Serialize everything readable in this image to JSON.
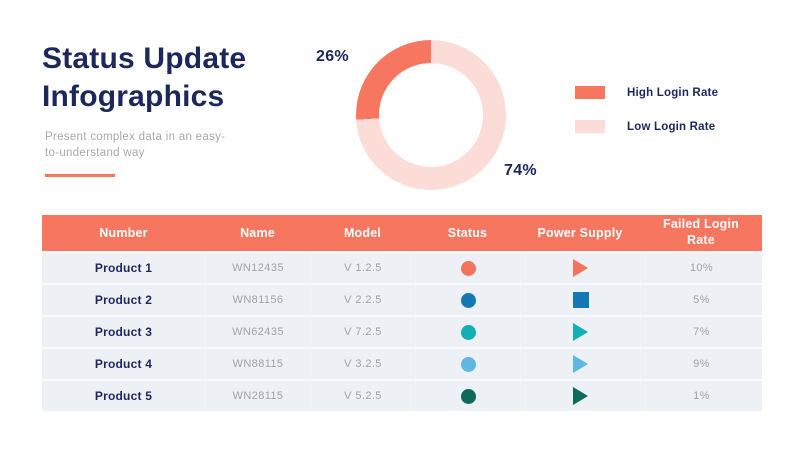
{
  "header": {
    "title_line1": "Status Update",
    "title_line2": "Infographics",
    "subtitle_line1": "Present complex data in an easy-",
    "subtitle_line2": "to-understand way"
  },
  "colors": {
    "coral": "#F7765F",
    "light_pink": "#FBDCD6",
    "navy": "#1C275C",
    "table_header_bg": "#F7765F",
    "table_row_bg": "#EDF0F5",
    "muted_text": "#9EA2A9"
  },
  "chart_data": {
    "type": "pie",
    "donut": true,
    "legend_position": "right",
    "slices": [
      {
        "label": "High Login Rate",
        "value": 26,
        "display": "26%",
        "color": "#F7765F"
      },
      {
        "label": "Low Login Rate",
        "value": 74,
        "display": "74%",
        "color": "#FBDCD6"
      }
    ]
  },
  "table": {
    "columns": [
      "Number",
      "Name",
      "Model",
      "Status",
      "Power Supply",
      "Failed Login Rate"
    ],
    "rows": [
      {
        "number": "Product 1",
        "name": "WN12435",
        "model": "V 1.2.5",
        "status_color": "#F4735C",
        "power_shape": "triangle",
        "power_color": "#F4735C",
        "failed_rate": "10%"
      },
      {
        "number": "Product 2",
        "name": "WN81156",
        "model": "V 2.2.5",
        "status_color": "#1478B4",
        "power_shape": "square",
        "power_color": "#1478B4",
        "failed_rate": "5%"
      },
      {
        "number": "Product 3",
        "name": "WN62435",
        "model": "V 7.2.5",
        "status_color": "#12AFB4",
        "power_shape": "triangle",
        "power_color": "#12AFB4",
        "failed_rate": "7%"
      },
      {
        "number": "Product 4",
        "name": "WN88115",
        "model": "V 3.2.5",
        "status_color": "#5FB8E2",
        "power_shape": "triangle",
        "power_color": "#5FB8E2",
        "failed_rate": "9%"
      },
      {
        "number": "Product 5",
        "name": "WN28115",
        "model": "V 5.2.5",
        "status_color": "#0F6A5B",
        "power_shape": "triangle",
        "power_color": "#0F6A5B",
        "failed_rate": "1%"
      }
    ]
  }
}
